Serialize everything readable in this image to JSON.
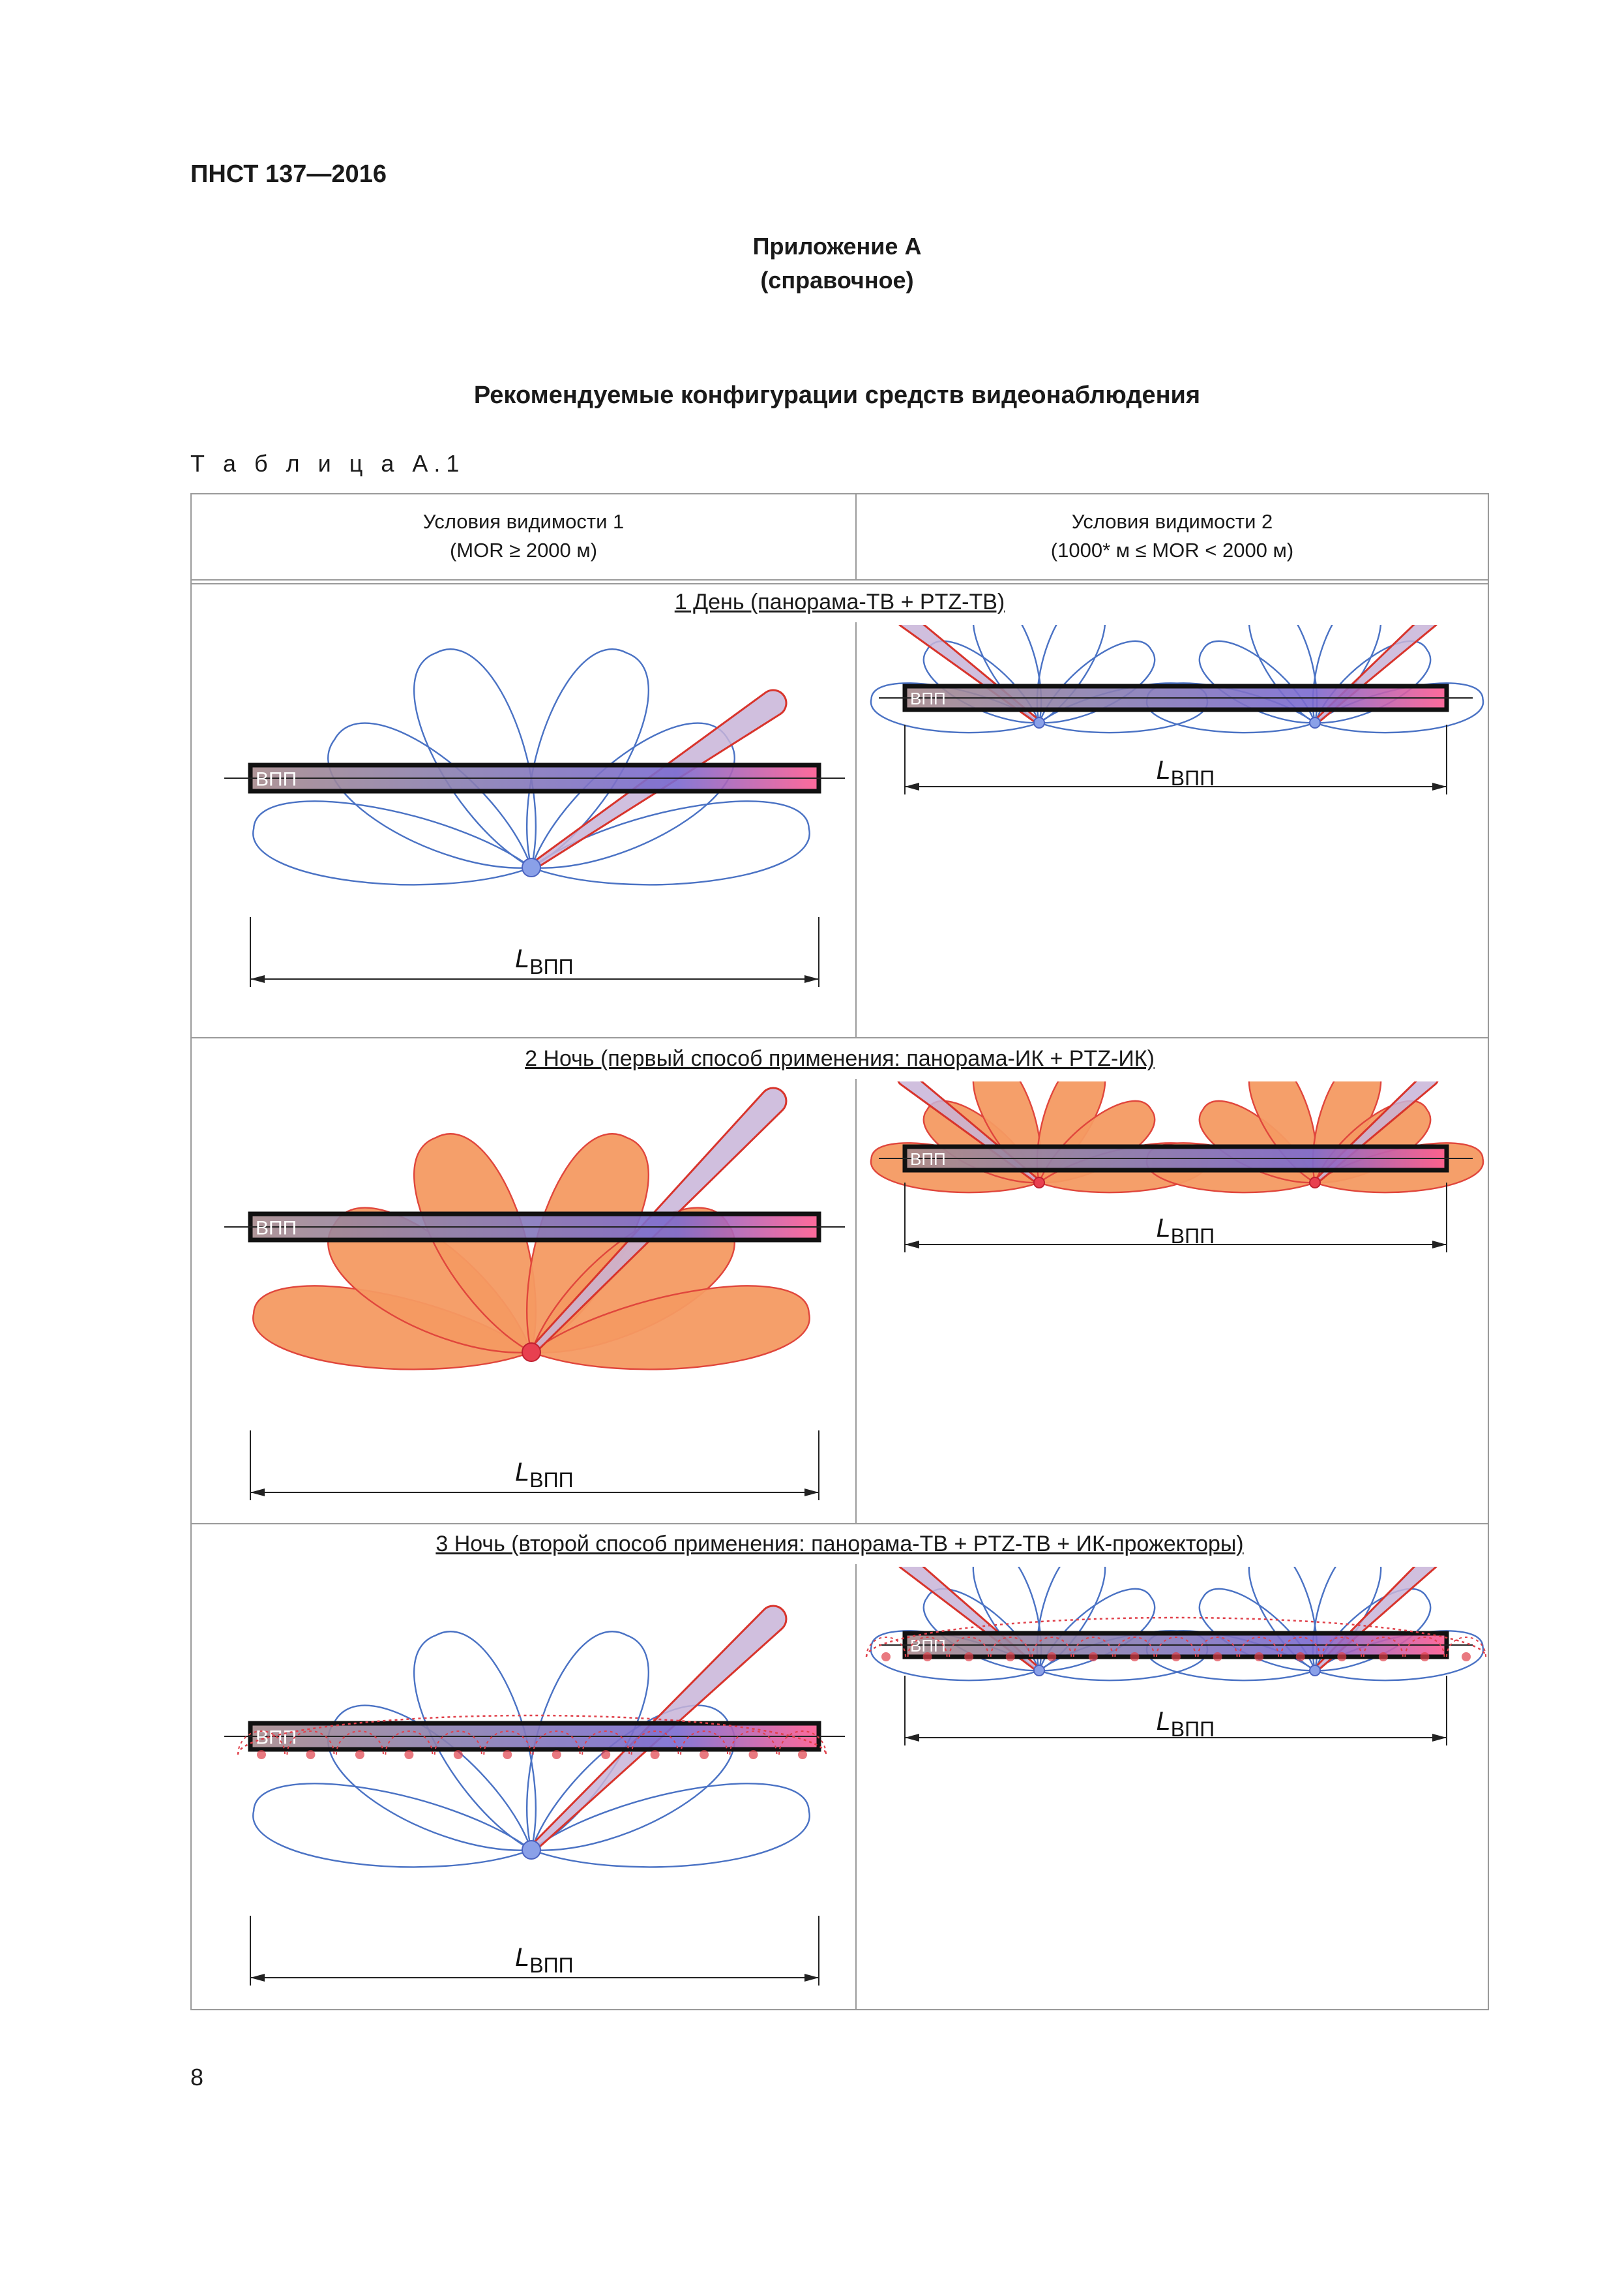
{
  "header": {
    "doc_code": "ПНСТ 137—2016"
  },
  "annex": {
    "title": "Приложение А",
    "subtitle": "(справочное)"
  },
  "heading": "Рекомендуемые конфигурации средств видеонаблюдения",
  "table": {
    "label": "Т а б л и ц а  А.1",
    "columns": [
      {
        "line1": "Условия видимости 1",
        "line2": "(MOR ≥ 2000 м)"
      },
      {
        "line1": "Условия видимости 2",
        "line2": "(1000* м ≤ MOR < 2000 м)"
      }
    ],
    "rows": [
      {
        "caption": "1  День (панорама-ТВ + PTZ-ТВ)"
      },
      {
        "caption": "2  Ночь (первый способ применения: панорама-ИК + PTZ-ИК)"
      },
      {
        "caption": "3  Ночь (второй способ применения: панорама-ТВ + PTZ-ТВ + ИК-прожекторы)"
      }
    ],
    "runway_label": "ВПП",
    "length_symbol": "L",
    "length_subscript": "ВПП"
  },
  "colors": {
    "day_lobe_stroke": "#4a72c4",
    "night_lobe_fill": "#f49a62",
    "night_lobe_stroke": "#e0463c",
    "ptz_fill": "#c8b4d8",
    "ptz_stroke": "#d8342c",
    "projector": "#e0404a"
  },
  "page_number": "8"
}
